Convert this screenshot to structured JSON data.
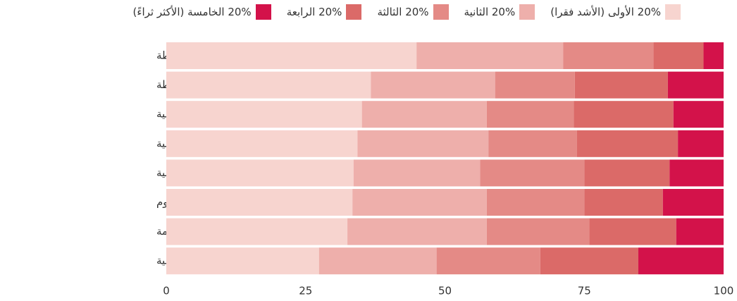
{
  "chart_data": {
    "type": "stacked-barh",
    "categories": [
      "تحويلات نقدية مشروطة",
      "تحويلات نقدية غير مشروطة",
      "المعاشات الاجتماعية",
      "التغذية المدرسية",
      "التحويلات العينية",
      "إعفاء من الرسوم",
      "الأشغال العامة",
      "أشكال أخرى للمساعدة الاجتماعية"
    ],
    "series": [
      {
        "name": "20% الأولى (الأشد فقرا)",
        "color": "#f7d4cf",
        "values": [
          44.9,
          36.7,
          35.1,
          34.3,
          33.6,
          33.4,
          32.5,
          27.4
        ]
      },
      {
        "name": "20% الثانية",
        "color": "#eeafab",
        "values": [
          26.3,
          22.3,
          22.4,
          23.5,
          22.7,
          24.1,
          25.0,
          21.1
        ]
      },
      {
        "name": "20% الثالثة",
        "color": "#e48a86",
        "values": [
          16.2,
          14.3,
          15.6,
          15.9,
          18.7,
          17.5,
          18.4,
          18.6
        ]
      },
      {
        "name": "20% الرابعة",
        "color": "#db6a68",
        "values": [
          9.0,
          16.7,
          17.9,
          18.1,
          15.3,
          14.1,
          15.6,
          17.6
        ]
      },
      {
        "name": "20% الخامسة (الأكثر ثراءً)",
        "color": "#d3124a",
        "values": [
          3.6,
          10.0,
          9.0,
          8.2,
          9.7,
          10.9,
          8.5,
          15.3
        ]
      }
    ],
    "xlim": [
      0,
      100
    ],
    "xticks": [
      0,
      25,
      50,
      75,
      100
    ]
  }
}
